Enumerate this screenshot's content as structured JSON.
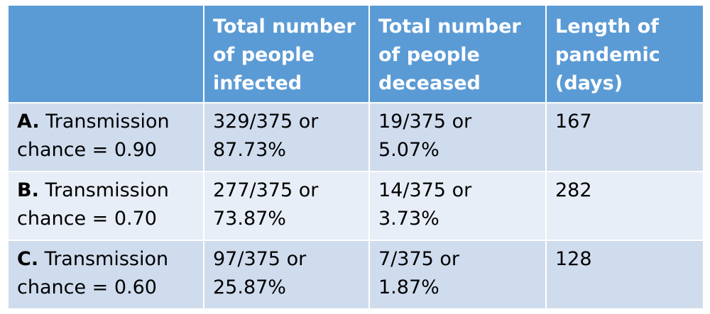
{
  "header": {
    "col0": "",
    "col1": [
      "Total number",
      "of people",
      "infected"
    ],
    "col2": [
      "Total number",
      "of people",
      "deceased"
    ],
    "col3": [
      "Length of",
      "pandemic",
      "(days)"
    ]
  },
  "rows": [
    {
      "letter": "A.",
      "label_line1": "Transmission",
      "label_line2": "chance = 0.90",
      "infected_line1": "329/375 or",
      "infected_line2": "87.73%",
      "deceased_line1": "19/375 or",
      "deceased_line2": "5.07%",
      "length": "167"
    },
    {
      "letter": "B.",
      "label_line1": "Transmission",
      "label_line2": "chance = 0.70",
      "infected_line1": "277/375 or",
      "infected_line2": "73.87%",
      "deceased_line1": "14/375 or",
      "deceased_line2": "3.73%",
      "length": "282"
    },
    {
      "letter": "C.",
      "label_line1": "Transmission",
      "label_line2": "chance = 0.60",
      "infected_line1": "97/375 or",
      "infected_line2": "25.87%",
      "deceased_line1": "7/375 or",
      "deceased_line2": "1.87%",
      "length": "128"
    }
  ],
  "colors": {
    "header_bg": "#5b9bd5",
    "row_odd_bg": "#cfdcee",
    "row_even_bg": "#e8eef7",
    "border": "#ffffff"
  }
}
